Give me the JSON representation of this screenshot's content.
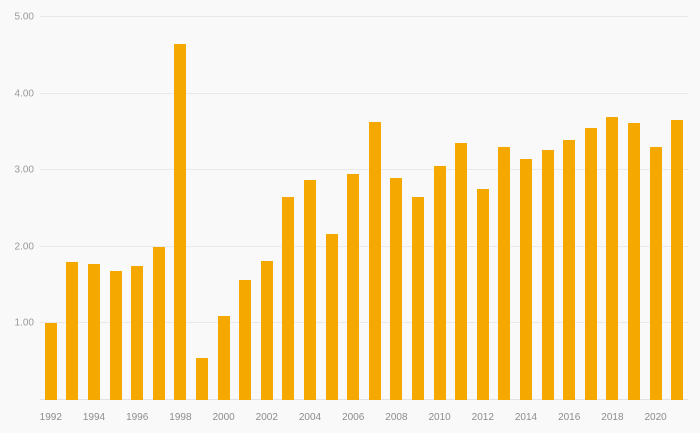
{
  "chart_data": {
    "type": "bar",
    "title": "",
    "xlabel": "",
    "ylabel": "",
    "x": [
      1992,
      1993,
      1994,
      1995,
      1996,
      1997,
      1998,
      1999,
      2000,
      2001,
      2002,
      2003,
      2004,
      2005,
      2006,
      2007,
      2008,
      2009,
      2010,
      2011,
      2012,
      2013,
      2014,
      2015,
      2016,
      2017,
      2018,
      2019,
      2020,
      2021
    ],
    "values": [
      1.0,
      1.8,
      1.78,
      1.68,
      1.75,
      2.0,
      4.65,
      0.55,
      1.1,
      1.57,
      1.82,
      2.65,
      2.87,
      2.17,
      2.95,
      3.63,
      2.9,
      2.65,
      3.05,
      3.35,
      2.75,
      3.3,
      3.15,
      3.27,
      3.4,
      3.55,
      3.7,
      3.62,
      3.3,
      3.65
    ],
    "ylim": [
      0,
      5
    ],
    "yticks": [
      1,
      2,
      3,
      4,
      5
    ],
    "ytick_labels": [
      "1.00",
      "2.00",
      "3.00",
      "4.00",
      "5.00"
    ],
    "xtick_labels": [
      "1992",
      "1994",
      "1996",
      "1998",
      "2000",
      "2002",
      "2004",
      "2006",
      "2008",
      "2010",
      "2012",
      "2014",
      "2016",
      "2018",
      "2020"
    ],
    "xtick_every": 2,
    "grid": true,
    "legend": "none",
    "bar_color": "#F5A800",
    "background_color": "#f9f9f9",
    "axis_label_color": "#999999",
    "gridline_color": "#e9e9e9"
  }
}
